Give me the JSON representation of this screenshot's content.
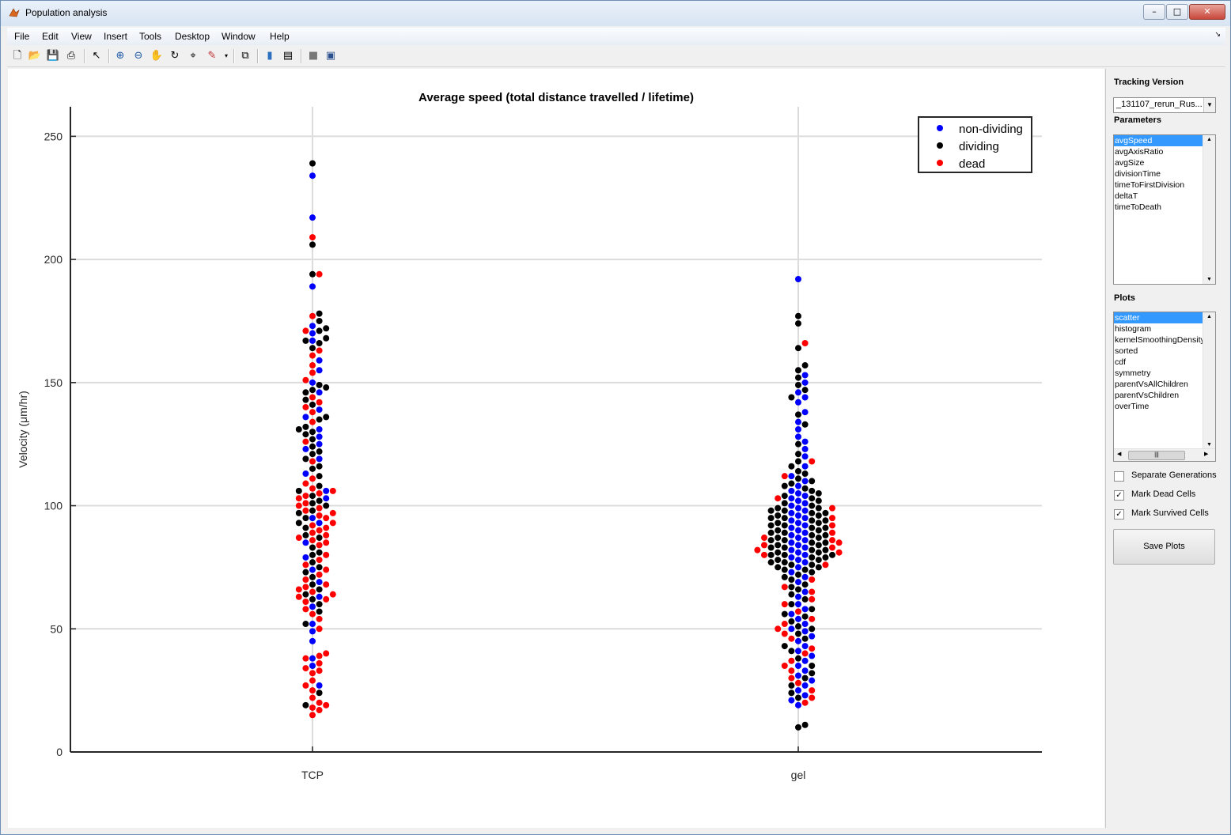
{
  "window": {
    "title": "Population analysis",
    "controls": [
      "–",
      "□",
      "✕"
    ]
  },
  "menu": [
    "File",
    "Edit",
    "View",
    "Insert",
    "Tools",
    "Desktop",
    "Window",
    "Help"
  ],
  "toolbar": [
    "new-icon",
    "open-icon",
    "save-icon",
    "print-icon",
    "pointer-icon",
    "zoom-in-icon",
    "zoom-out-icon",
    "pan-icon",
    "rotate-icon",
    "data-cursor-icon",
    "brush-icon",
    "link-icon",
    "colorbar-icon",
    "legend-icon",
    "hide-plot-tools-icon",
    "show-plot-tools-icon"
  ],
  "panel": {
    "tracking_version_label": "Tracking Version",
    "tracking_version_value": "_131107_rerun_Rus...",
    "parameters_label": "Parameters",
    "parameters": [
      "avgSpeed",
      "avgAxisRatio",
      "avgSize",
      "divisionTime",
      "timeToFirstDivision",
      "deltaT",
      "timeToDeath"
    ],
    "parameters_selected": 0,
    "plots_label": "Plots",
    "plots": [
      "scatter",
      "histogram",
      "kernelSmoothingDensity",
      "sorted",
      "cdf",
      "symmetry",
      "parentVsAllChildren",
      "parentVsChildren",
      "overTime"
    ],
    "plots_selected": 0,
    "checkboxes": [
      {
        "label": "Separate Generations",
        "checked": false
      },
      {
        "label": "Mark Dead Cells",
        "checked": true
      },
      {
        "label": "Mark Survived Cells",
        "checked": true
      }
    ],
    "save_label": "Save Plots"
  },
  "chart_data": {
    "type": "scatter",
    "title": "Average speed (total distance travelled / lifetime)",
    "ylabel": "Velocity (μm/hr)",
    "categories": [
      "TCP",
      "gel"
    ],
    "ylim": [
      0,
      262
    ],
    "yticks": [
      0,
      50,
      100,
      150,
      200,
      250
    ],
    "grid": true,
    "legend_position": "top-right",
    "series": [
      {
        "name": "non-dividing",
        "color": "#0000ff"
      },
      {
        "name": "dividing",
        "color": "#000000"
      },
      {
        "name": "dead",
        "color": "#ff0000"
      }
    ],
    "points": {
      "TCP": {
        "non-dividing": [
          234,
          217,
          189,
          173,
          170,
          167,
          159,
          155,
          150,
          146,
          139,
          136,
          131,
          128,
          125,
          123,
          119,
          113,
          106,
          103,
          95,
          93,
          85,
          79,
          74,
          69,
          63,
          59,
          52,
          49,
          45,
          38,
          35,
          27
        ],
        "dividing": [
          239,
          206,
          194,
          178,
          175,
          172,
          171,
          168,
          167,
          166,
          164,
          149,
          148,
          147,
          146,
          143,
          141,
          136,
          135,
          132,
          131,
          130,
          129,
          127,
          124,
          122,
          121,
          119,
          116,
          115,
          112,
          108,
          106,
          104,
          102,
          101,
          100,
          98,
          97,
          95,
          93,
          91,
          88,
          87,
          83,
          81,
          80,
          77,
          75,
          73,
          71,
          68,
          66,
          64,
          62,
          60,
          57,
          52,
          24,
          19
        ],
        "dead": [
          209,
          194,
          177,
          171,
          163,
          161,
          157,
          154,
          151,
          144,
          142,
          140,
          138,
          134,
          126,
          118,
          111,
          109,
          107,
          106,
          105,
          104,
          103,
          101,
          100,
          99,
          98,
          97,
          96,
          95,
          93,
          92,
          91,
          90,
          89,
          88,
          87,
          86,
          85,
          84,
          80,
          78,
          76,
          74,
          72,
          70,
          68,
          67,
          66,
          65,
          64,
          63,
          62,
          61,
          58,
          56,
          54,
          50,
          40,
          39,
          38,
          36,
          34,
          33,
          32,
          29,
          27,
          25,
          22,
          20,
          19,
          18,
          17,
          15
        ]
      },
      "gel": {
        "non-dividing": [
          192,
          153,
          150,
          146,
          144,
          142,
          138,
          134,
          131,
          128,
          126,
          123,
          120,
          116,
          112,
          110,
          108,
          106,
          105,
          104,
          103,
          102,
          101,
          100,
          99,
          98,
          97,
          96,
          95,
          94,
          93,
          92,
          91,
          90,
          89,
          88,
          87,
          86,
          85,
          84,
          83,
          82,
          81,
          80,
          79,
          78,
          77,
          75,
          73,
          71,
          69,
          65,
          63,
          60,
          58,
          56,
          54,
          52,
          50,
          49,
          47,
          45,
          43,
          41,
          39,
          37,
          35,
          33,
          31,
          29,
          27,
          25,
          23,
          21,
          19
        ],
        "dividing": [
          177,
          174,
          164,
          157,
          155,
          152,
          149,
          147,
          144,
          137,
          133,
          125,
          121,
          118,
          116,
          114,
          113,
          111,
          110,
          109,
          108,
          107,
          106,
          105,
          104,
          103,
          102,
          101,
          100,
          99,
          99,
          98,
          98,
          97,
          97,
          96,
          96,
          95,
          95,
          94,
          94,
          93,
          93,
          92,
          92,
          91,
          91,
          90,
          90,
          89,
          89,
          88,
          88,
          87,
          87,
          86,
          86,
          85,
          85,
          84,
          84,
          83,
          83,
          82,
          82,
          81,
          81,
          80,
          80,
          80,
          79,
          79,
          78,
          78,
          77,
          77,
          76,
          76,
          75,
          75,
          74,
          74,
          73,
          72,
          71,
          70,
          68,
          67,
          66,
          64,
          62,
          60,
          58,
          56,
          55,
          53,
          51,
          50,
          48,
          46,
          43,
          41,
          38,
          35,
          32,
          30,
          27,
          24,
          22,
          11,
          10
        ],
        "dead": [
          166,
          118,
          112,
          103,
          99,
          95,
          92,
          89,
          87,
          86,
          85,
          84,
          83,
          82,
          81,
          80,
          76,
          70,
          67,
          65,
          62,
          60,
          57,
          54,
          52,
          50,
          48,
          46,
          42,
          40,
          37,
          35,
          33,
          30,
          28,
          25,
          22,
          20
        ]
      }
    }
  }
}
